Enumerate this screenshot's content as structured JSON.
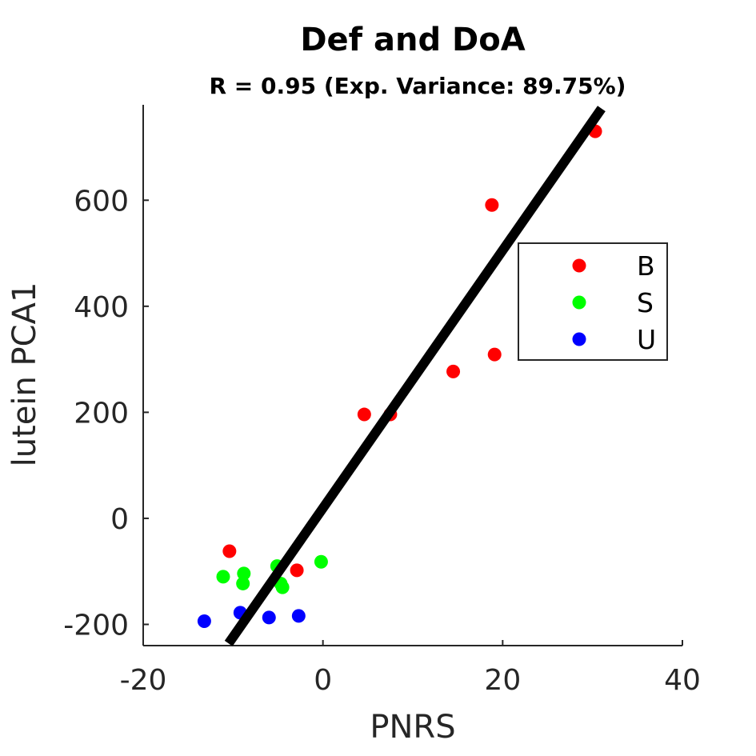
{
  "chart_data": {
    "type": "scatter",
    "title": "Def and DoA",
    "subtitle": "R = 0.95 (Exp. Variance: 89.75%)",
    "xlabel": "PNRS",
    "ylabel": "lutein PCA1",
    "xlim": [
      -20,
      40
    ],
    "ylim": [
      -240,
      780
    ],
    "xticks": [
      -20,
      0,
      20,
      40
    ],
    "yticks": [
      -200,
      0,
      200,
      400,
      600
    ],
    "grid": false,
    "legend_position": "right",
    "series": [
      {
        "name": "B",
        "color": "#ff0000",
        "points": [
          {
            "x": -10.4,
            "y": -62
          },
          {
            "x": -2.9,
            "y": -98
          },
          {
            "x": 4.6,
            "y": 196
          },
          {
            "x": 7.5,
            "y": 196
          },
          {
            "x": 14.5,
            "y": 277
          },
          {
            "x": 18.8,
            "y": 591
          },
          {
            "x": 19.1,
            "y": 309
          },
          {
            "x": 30.3,
            "y": 730
          }
        ]
      },
      {
        "name": "S",
        "color": "#00ff00",
        "points": [
          {
            "x": -11.1,
            "y": -110
          },
          {
            "x": -8.8,
            "y": -104
          },
          {
            "x": -8.9,
            "y": -123
          },
          {
            "x": -5.1,
            "y": -90
          },
          {
            "x": -4.7,
            "y": -123
          },
          {
            "x": -4.5,
            "y": -130
          },
          {
            "x": -0.2,
            "y": -82
          }
        ]
      },
      {
        "name": "U",
        "color": "#0000ff",
        "points": [
          {
            "x": -13.2,
            "y": -194
          },
          {
            "x": -9.2,
            "y": -178
          },
          {
            "x": -6.0,
            "y": -187
          },
          {
            "x": -2.7,
            "y": -184
          }
        ]
      }
    ],
    "fit_line": {
      "color": "#000000",
      "x": [
        -10.5,
        31.0
      ],
      "y": [
        -236,
        773
      ]
    }
  }
}
